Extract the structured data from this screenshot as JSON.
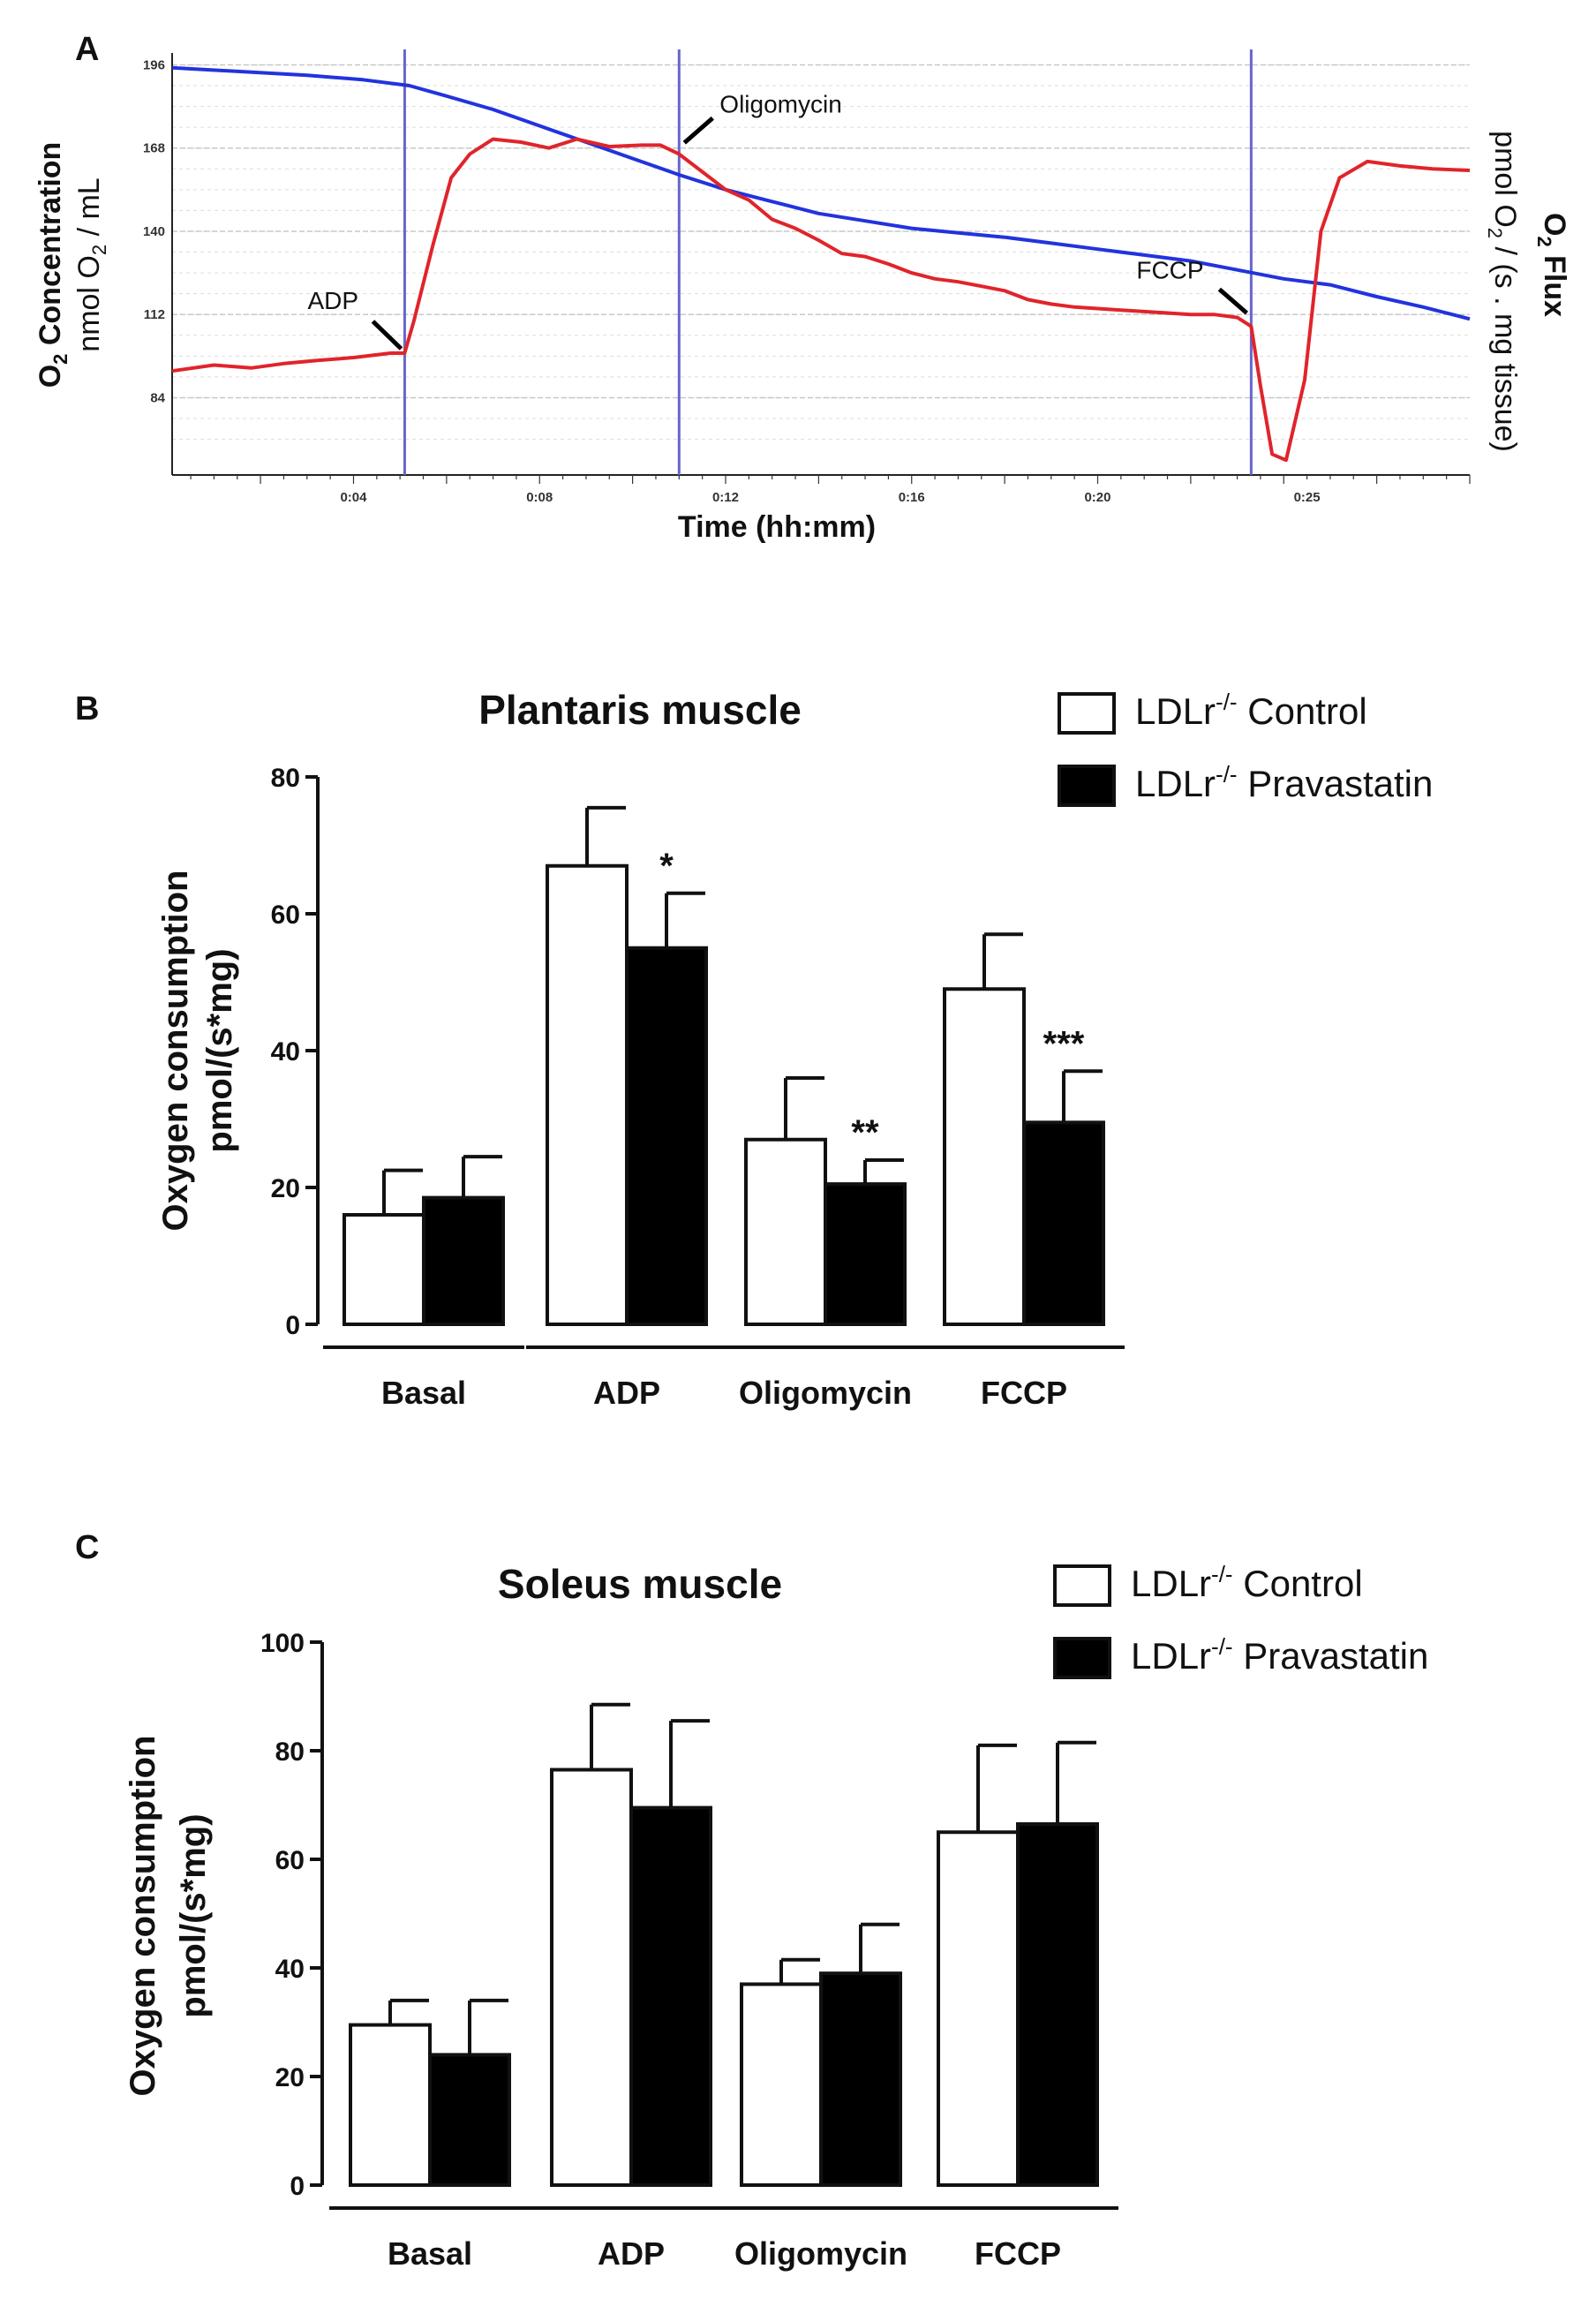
{
  "chart_data": [
    {
      "panel": "A",
      "type": "line",
      "xlabel": "Time (hh:mm)",
      "x_ticks": [
        "0:04",
        "0:08",
        "0:12",
        "0:16",
        "0:20",
        "0:25"
      ],
      "x_tick_minutes": [
        4,
        8,
        12,
        16,
        20,
        24.5
      ],
      "xlim_minutes": [
        0.1,
        28
      ],
      "ylabel_left": {
        "main": "O",
        "sub": "2",
        "rest": " Concentration",
        "line2_pre": "nmol O",
        "line2_sub": "2",
        "line2_post": " / mL"
      },
      "ylabel_right": {
        "main": "O",
        "sub": "2",
        "rest": " Flux",
        "line2_pre": "pmol O",
        "line2_sub": "2",
        "line2_post": " / (s . mg tissue)"
      },
      "y_ticks": [
        196,
        168,
        140,
        112,
        84
      ],
      "ylim": [
        58,
        200
      ],
      "series": [
        {
          "name": "O2 concentration",
          "color": "#2233dd",
          "points": [
            [
              0.1,
              195
            ],
            [
              3,
              192.5
            ],
            [
              4.2,
              191
            ],
            [
              5.2,
              189
            ],
            [
              6,
              185.5
            ],
            [
              7,
              181
            ],
            [
              8,
              175.5
            ],
            [
              9,
              170
            ],
            [
              10,
              164.5
            ],
            [
              11,
              159
            ],
            [
              12,
              154
            ],
            [
              13,
              150
            ],
            [
              14,
              146
            ],
            [
              15,
              143.5
            ],
            [
              16,
              141
            ],
            [
              17,
              139.5
            ],
            [
              18,
              138
            ],
            [
              19,
              136
            ],
            [
              20,
              134
            ],
            [
              21,
              132
            ],
            [
              22,
              130
            ],
            [
              23,
              127
            ],
            [
              24,
              124
            ],
            [
              25,
              122
            ],
            [
              26,
              118
            ],
            [
              27,
              114.5
            ],
            [
              28,
              110.5
            ]
          ]
        },
        {
          "name": "O2 flux",
          "color": "#e0242b",
          "points": [
            [
              0.1,
              93
            ],
            [
              1,
              95
            ],
            [
              1.8,
              94
            ],
            [
              2.5,
              95.5
            ],
            [
              3.2,
              96.5
            ],
            [
              4,
              97.5
            ],
            [
              4.8,
              99
            ],
            [
              5.1,
              99
            ],
            [
              5.3,
              110
            ],
            [
              5.7,
              135
            ],
            [
              6.1,
              158
            ],
            [
              6.5,
              166
            ],
            [
              7,
              171
            ],
            [
              7.6,
              170
            ],
            [
              8.2,
              168
            ],
            [
              8.8,
              171
            ],
            [
              9.5,
              168.5
            ],
            [
              10.2,
              169
            ],
            [
              10.6,
              169
            ],
            [
              11,
              166
            ],
            [
              11.5,
              160
            ],
            [
              12,
              154
            ],
            [
              12.5,
              150.5
            ],
            [
              13,
              144
            ],
            [
              13.5,
              141
            ],
            [
              14,
              137
            ],
            [
              14.5,
              132.5
            ],
            [
              15,
              131.5
            ],
            [
              15.5,
              129
            ],
            [
              16,
              126
            ],
            [
              16.5,
              124
            ],
            [
              17,
              123
            ],
            [
              17.5,
              121.5
            ],
            [
              18,
              120
            ],
            [
              18.5,
              117
            ],
            [
              19,
              115.5
            ],
            [
              19.5,
              114.5
            ],
            [
              20,
              114
            ],
            [
              20.5,
              113.5
            ],
            [
              21,
              113
            ],
            [
              21.5,
              112.5
            ],
            [
              22,
              112
            ],
            [
              22.5,
              112
            ],
            [
              23,
              111
            ],
            [
              23.3,
              108
            ],
            [
              23.5,
              88
            ],
            [
              23.75,
              65
            ],
            [
              24.05,
              63
            ],
            [
              24.45,
              90
            ],
            [
              24.8,
              140
            ],
            [
              25.2,
              158
            ],
            [
              25.8,
              163.5
            ],
            [
              26.5,
              162
            ],
            [
              27.2,
              161
            ],
            [
              28,
              160.5
            ]
          ]
        }
      ],
      "markers": [
        {
          "label": "ADP",
          "minute": 5.1
        },
        {
          "label": "Oligomycin",
          "minute": 11
        },
        {
          "label": "FCCP",
          "minute": 23.3
        }
      ]
    },
    {
      "panel": "B",
      "type": "bar",
      "title": "Plantaris muscle",
      "ylabel": "Oxygen consumption",
      "ylabel2": "pmol/(s*mg)",
      "ylim": [
        0,
        80
      ],
      "y_ticks": [
        0,
        20,
        40,
        60,
        80
      ],
      "categories": [
        "Basal",
        "ADP",
        "Oligomycin",
        "FCCP"
      ],
      "series": [
        {
          "name": "LDLr-/- Control",
          "values": [
            16,
            67,
            27,
            49
          ],
          "errors": [
            6.5,
            8.5,
            9,
            8
          ]
        },
        {
          "name": "LDLr-/- Pravastatin",
          "values": [
            18.5,
            55,
            20.5,
            29.5
          ],
          "errors": [
            6,
            8,
            3.5,
            7.5
          ]
        }
      ],
      "significance": [
        "",
        "*",
        "**",
        "***"
      ]
    },
    {
      "panel": "C",
      "type": "bar",
      "title": "Soleus muscle",
      "ylabel": "Oxygen consumption",
      "ylabel2": "pmol/(s*mg)",
      "ylim": [
        0,
        100
      ],
      "y_ticks": [
        0,
        20,
        40,
        60,
        80,
        100
      ],
      "categories": [
        "Basal",
        "ADP",
        "Oligomycin",
        "FCCP"
      ],
      "series": [
        {
          "name": "LDLr-/- Control",
          "values": [
            29.5,
            76.5,
            37,
            65
          ],
          "errors": [
            4.5,
            12,
            4.5,
            16
          ]
        },
        {
          "name": "LDLr-/- Pravastatin",
          "values": [
            24,
            69.5,
            39,
            66.5
          ],
          "errors": [
            10,
            16,
            9,
            15
          ]
        }
      ],
      "significance": [
        "",
        "",
        "",
        ""
      ]
    }
  ],
  "legend": {
    "base": "LDLr",
    "sup": "-/-",
    "control": "Control",
    "pravastatin": "Pravastatin"
  }
}
